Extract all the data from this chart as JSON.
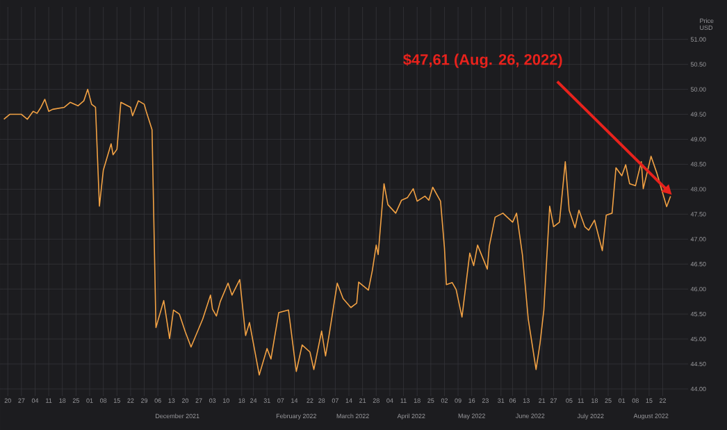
{
  "chart_data": {
    "type": "line",
    "ylabel": "Price USD",
    "grid": true,
    "x": [
      "2021-09-18",
      "2021-09-21",
      "2021-09-27",
      "2021-09-30",
      "2021-10-03",
      "2021-10-05",
      "2021-10-07",
      "2021-10-09",
      "2021-10-11",
      "2021-10-13",
      "2021-10-19",
      "2021-10-22",
      "2021-10-26",
      "2021-10-29",
      "2021-10-31",
      "2021-11-02",
      "2021-11-04",
      "2021-11-06",
      "2021-11-08",
      "2021-11-12",
      "2021-11-13",
      "2021-11-15",
      "2021-11-17",
      "2021-11-22",
      "2021-11-23",
      "2021-11-26",
      "2021-11-29",
      "2021-11-30",
      "2021-12-03",
      "2021-12-05",
      "2021-12-09",
      "2021-12-12",
      "2021-12-14",
      "2021-12-17",
      "2021-12-20",
      "2021-12-23",
      "2021-12-29",
      "2022-01-02",
      "2022-01-03",
      "2022-01-05",
      "2022-01-07",
      "2022-01-11",
      "2022-01-13",
      "2022-01-17",
      "2022-01-20",
      "2022-01-22",
      "2022-01-27",
      "2022-01-31",
      "2022-02-02",
      "2022-02-06",
      "2022-02-11",
      "2022-02-15",
      "2022-02-18",
      "2022-02-22",
      "2022-02-24",
      "2022-02-28",
      "2022-03-02",
      "2022-03-04",
      "2022-03-08",
      "2022-03-11",
      "2022-03-15",
      "2022-03-18",
      "2022-03-19",
      "2022-03-24",
      "2022-03-26",
      "2022-03-28",
      "2022-03-29",
      "2022-04-01",
      "2022-04-03",
      "2022-04-07",
      "2022-04-10",
      "2022-04-13",
      "2022-04-16",
      "2022-04-18",
      "2022-04-22",
      "2022-04-24",
      "2022-04-26",
      "2022-04-30",
      "2022-05-02",
      "2022-05-03",
      "2022-05-06",
      "2022-05-08",
      "2022-05-11",
      "2022-05-15",
      "2022-05-17",
      "2022-05-19",
      "2022-05-24",
      "2022-05-25",
      "2022-05-28",
      "2022-06-01",
      "2022-06-06",
      "2022-06-08",
      "2022-06-11",
      "2022-06-14",
      "2022-06-18",
      "2022-06-20",
      "2022-06-22",
      "2022-06-25",
      "2022-06-27",
      "2022-06-30",
      "2022-07-03",
      "2022-07-05",
      "2022-07-08",
      "2022-07-10",
      "2022-07-13",
      "2022-07-15",
      "2022-07-18",
      "2022-07-22",
      "2022-07-24",
      "2022-07-27",
      "2022-07-29",
      "2022-08-01",
      "2022-08-03",
      "2022-08-05",
      "2022-08-08",
      "2022-08-11",
      "2022-08-12",
      "2022-08-16",
      "2022-08-19",
      "2022-08-24",
      "2022-08-26"
    ],
    "series": [
      {
        "color": "#f3a244",
        "values": [
          49.4,
          49.5,
          49.5,
          49.4,
          49.56,
          49.52,
          49.64,
          49.8,
          49.56,
          49.6,
          49.64,
          49.74,
          49.67,
          49.77,
          50.0,
          49.7,
          49.64,
          47.66,
          48.38,
          48.91,
          48.69,
          48.8,
          49.74,
          49.64,
          49.47,
          49.77,
          49.7,
          49.56,
          49.19,
          45.23,
          45.77,
          45.01,
          45.58,
          45.5,
          45.15,
          44.84,
          45.4,
          45.88,
          45.6,
          45.46,
          45.75,
          46.12,
          45.88,
          46.19,
          45.07,
          45.33,
          44.28,
          44.81,
          44.6,
          45.53,
          45.58,
          44.35,
          44.88,
          44.74,
          44.39,
          45.16,
          44.66,
          45.12,
          46.12,
          45.81,
          45.63,
          45.72,
          46.14,
          45.98,
          46.37,
          46.88,
          46.69,
          48.11,
          47.69,
          47.52,
          47.78,
          47.83,
          48.01,
          47.76,
          47.86,
          47.78,
          48.04,
          47.76,
          46.83,
          46.09,
          46.13,
          45.99,
          45.44,
          46.72,
          46.47,
          46.88,
          46.4,
          46.86,
          47.44,
          47.52,
          47.34,
          47.52,
          46.69,
          45.4,
          44.39,
          44.9,
          45.58,
          47.66,
          47.25,
          47.34,
          48.55,
          47.58,
          47.23,
          47.58,
          47.25,
          47.18,
          47.38,
          46.77,
          47.48,
          47.52,
          48.43,
          48.27,
          48.49,
          48.11,
          48.07,
          48.55,
          48.01,
          48.66,
          48.32,
          47.65,
          47.86
        ]
      }
    ],
    "xlim": [
      "2021-09-16",
      "2022-09-04"
    ],
    "ylim": [
      43.86,
      51.65
    ],
    "yticks": [
      {
        "value": 44,
        "label": "44.00"
      },
      {
        "value": 44.5,
        "label": "44.50"
      },
      {
        "value": 45,
        "label": "45.00"
      },
      {
        "value": 45.5,
        "label": "45.50"
      },
      {
        "value": 46,
        "label": "46.00"
      },
      {
        "value": 46.5,
        "label": "46.50"
      },
      {
        "value": 47,
        "label": "47.00"
      },
      {
        "value": 47.5,
        "label": "47.50"
      },
      {
        "value": 48,
        "label": "48.00"
      },
      {
        "value": 48.5,
        "label": "48.50"
      },
      {
        "value": 49,
        "label": "49.00"
      },
      {
        "value": 49.5,
        "label": "49.50"
      },
      {
        "value": 50,
        "label": "50.00"
      },
      {
        "value": 50.5,
        "label": "50.50"
      },
      {
        "value": 51,
        "label": "51.00"
      }
    ],
    "xticks": [
      {
        "value": "2021-09-20",
        "label": "20"
      },
      {
        "value": "2021-09-27",
        "label": "27"
      },
      {
        "value": "2021-10-04",
        "label": "04"
      },
      {
        "value": "2021-10-11",
        "label": "11"
      },
      {
        "value": "2021-10-18",
        "label": "18"
      },
      {
        "value": "2021-10-25",
        "label": "25"
      },
      {
        "value": "2021-11-01",
        "label": "01"
      },
      {
        "value": "2021-11-08",
        "label": "08"
      },
      {
        "value": "2021-11-15",
        "label": "15"
      },
      {
        "value": "2021-11-22",
        "label": "22"
      },
      {
        "value": "2021-11-29",
        "label": "29"
      },
      {
        "value": "2021-12-06",
        "label": "06"
      },
      {
        "value": "2021-12-13",
        "label": "13"
      },
      {
        "value": "2021-12-20",
        "label": "20"
      },
      {
        "value": "2021-12-27",
        "label": "27"
      },
      {
        "value": "2022-01-03",
        "label": "03"
      },
      {
        "value": "2022-01-10",
        "label": "10"
      },
      {
        "value": "2022-01-18",
        "label": "18"
      },
      {
        "value": "2022-01-24",
        "label": "24"
      },
      {
        "value": "2022-01-31",
        "label": "31"
      },
      {
        "value": "2022-02-07",
        "label": "07"
      },
      {
        "value": "2022-02-14",
        "label": "14"
      },
      {
        "value": "2022-02-22",
        "label": "22"
      },
      {
        "value": "2022-02-28",
        "label": "28"
      },
      {
        "value": "2022-03-07",
        "label": "07"
      },
      {
        "value": "2022-03-14",
        "label": "14"
      },
      {
        "value": "2022-03-21",
        "label": "21"
      },
      {
        "value": "2022-03-28",
        "label": "28"
      },
      {
        "value": "2022-04-04",
        "label": "04"
      },
      {
        "value": "2022-04-11",
        "label": "11"
      },
      {
        "value": "2022-04-18",
        "label": "18"
      },
      {
        "value": "2022-04-25",
        "label": "25"
      },
      {
        "value": "2022-05-02",
        "label": "02"
      },
      {
        "value": "2022-05-09",
        "label": "09"
      },
      {
        "value": "2022-05-16",
        "label": "16"
      },
      {
        "value": "2022-05-23",
        "label": "23"
      },
      {
        "value": "2022-05-31",
        "label": "31"
      },
      {
        "value": "2022-06-06",
        "label": "06"
      },
      {
        "value": "2022-06-13",
        "label": "13"
      },
      {
        "value": "2022-06-21",
        "label": "21"
      },
      {
        "value": "2022-06-27",
        "label": "27"
      },
      {
        "value": "2022-07-05",
        "label": "05"
      },
      {
        "value": "2022-07-11",
        "label": "11"
      },
      {
        "value": "2022-07-18",
        "label": "18"
      },
      {
        "value": "2022-07-25",
        "label": "25"
      },
      {
        "value": "2022-08-01",
        "label": "01"
      },
      {
        "value": "2022-08-08",
        "label": "08"
      },
      {
        "value": "2022-08-15",
        "label": "15"
      },
      {
        "value": "2022-08-22",
        "label": "22"
      }
    ],
    "x2lim": [
      "2021-09-16",
      "2022-09-04"
    ],
    "x2ticks": [
      {
        "value": "2021-12-16",
        "label": "December 2021"
      },
      {
        "value": "2022-02-15",
        "label": "February 2022"
      },
      {
        "value": "2022-03-16",
        "label": "March 2022"
      },
      {
        "value": "2022-04-15",
        "label": "April 2022"
      },
      {
        "value": "2022-05-16",
        "label": "May 2022"
      },
      {
        "value": "2022-06-15",
        "label": "June 2022"
      },
      {
        "value": "2022-07-16",
        "label": "July 2022"
      },
      {
        "value": "2022-08-16",
        "label": "August 2022"
      }
    ],
    "annotations": [
      "$47,61 (Aug. 26, 2022)"
    ]
  }
}
